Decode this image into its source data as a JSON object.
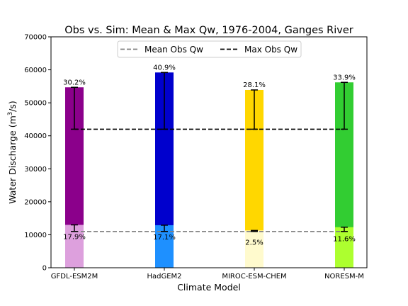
{
  "chart_data": {
    "type": "bar",
    "title": "Obs vs. Sim: Mean & Max Qw, 1976-2004, Ganges River",
    "xlabel": "Climate Model",
    "ylabel_main": "Water Discharge (m",
    "ylabel_sup": "3",
    "ylabel_tail": "/s)",
    "ylim": [
      0,
      70000
    ],
    "yticks": [
      0,
      10000,
      20000,
      30000,
      40000,
      50000,
      60000,
      70000
    ],
    "ytick_labels": [
      "0",
      "10000",
      "20000",
      "30000",
      "40000",
      "50000",
      "60000",
      "70000"
    ],
    "categories": [
      "GFDL-ESM2M",
      "HadGEM2",
      "MIROC-ESM-CHEM",
      "NORESM-M"
    ],
    "series": [
      {
        "name": "Mean Qw",
        "values": [
          13000,
          12900,
          11300,
          12300
        ],
        "colors": [
          "#dda0dd",
          "#1e90ff",
          "#fffacd",
          "#adff2f"
        ],
        "labels": [
          "17.9%",
          "17.1%",
          "2.5%",
          "11.6%"
        ]
      },
      {
        "name": "Max Qw",
        "values": [
          54700,
          59200,
          53900,
          56200
        ],
        "colors": [
          "#8b008b",
          "#0000cd",
          "#ffd700",
          "#32cd32"
        ],
        "labels": [
          "30.2%",
          "40.9%",
          "28.1%",
          "33.9%"
        ]
      }
    ],
    "reference_lines": [
      {
        "name": "Mean Obs Qw",
        "value": 11000,
        "color": "#808080",
        "dash": "dashed"
      },
      {
        "name": "Max Obs Qw",
        "value": 42000,
        "color": "#000000",
        "dash": "dashed"
      }
    ],
    "legend": {
      "placement": "top-center",
      "entries": [
        "Mean Obs Qw",
        "Max Obs Qw"
      ]
    },
    "grid": false
  }
}
